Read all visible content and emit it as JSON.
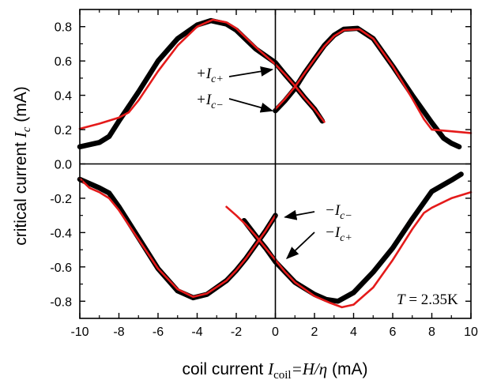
{
  "chart_data": {
    "type": "scatter",
    "xlabel": "coil current I_coil=H/η (mA)",
    "ylabel": "critical current I_c (mA)",
    "xlim": [
      -10,
      10
    ],
    "ylim": [
      -0.9,
      0.9
    ],
    "x_ticks": [
      -10,
      -8,
      -6,
      -4,
      -2,
      0,
      2,
      4,
      6,
      8,
      10
    ],
    "y_ticks": [
      -0.8,
      -0.6,
      -0.4,
      -0.2,
      0.0,
      0.2,
      0.4,
      0.6,
      0.8
    ],
    "x_tick_labels": [
      "-10",
      "-8",
      "-6",
      "-4",
      "-2",
      "0",
      "2",
      "4",
      "6",
      "8",
      "10"
    ],
    "y_tick_labels": [
      "-0.8",
      "-0.6",
      "-0.4",
      "-0.2",
      "0.0",
      "0.2",
      "0.4",
      "0.6",
      "0.8"
    ],
    "grid": false,
    "reference_lines": {
      "x": 0,
      "y": 0
    },
    "series": [
      {
        "color": "#000000",
        "style": "thick-points",
        "points": [
          [
            -10,
            0.1
          ],
          [
            -9,
            0.125
          ],
          [
            -8.5,
            0.16
          ],
          [
            -8,
            0.25
          ],
          [
            -7,
            0.42
          ],
          [
            -6,
            0.6
          ],
          [
            -5,
            0.73
          ],
          [
            -4,
            0.81
          ],
          [
            -3.3,
            0.835
          ],
          [
            -2.5,
            0.815
          ],
          [
            -2,
            0.78
          ],
          [
            -1,
            0.67
          ],
          [
            0,
            0.59
          ],
          [
            0.5,
            0.52
          ],
          [
            1,
            0.455
          ],
          [
            1.5,
            0.385
          ],
          [
            2,
            0.32
          ],
          [
            2.4,
            0.25
          ]
        ]
      },
      {
        "color": "#000000",
        "style": "thick-points",
        "points": [
          [
            0,
            0.31
          ],
          [
            0.5,
            0.37
          ],
          [
            1,
            0.44
          ],
          [
            1.5,
            0.53
          ],
          [
            2,
            0.61
          ],
          [
            2.5,
            0.69
          ],
          [
            3,
            0.75
          ],
          [
            3.5,
            0.785
          ],
          [
            4.2,
            0.79
          ],
          [
            5,
            0.73
          ],
          [
            6,
            0.57
          ],
          [
            7,
            0.4
          ],
          [
            8,
            0.24
          ],
          [
            8.6,
            0.15
          ],
          [
            9,
            0.12
          ],
          [
            9.4,
            0.1
          ]
        ]
      },
      {
        "color": "#000000",
        "style": "thick-points",
        "points": [
          [
            -10,
            -0.09
          ],
          [
            -9,
            -0.14
          ],
          [
            -8.5,
            -0.17
          ],
          [
            -8,
            -0.25
          ],
          [
            -7,
            -0.43
          ],
          [
            -6,
            -0.61
          ],
          [
            -5,
            -0.74
          ],
          [
            -4.2,
            -0.78
          ],
          [
            -3.5,
            -0.76
          ],
          [
            -2.5,
            -0.68
          ],
          [
            -2,
            -0.62
          ],
          [
            -1.5,
            -0.55
          ],
          [
            -1,
            -0.47
          ],
          [
            -0.5,
            -0.39
          ],
          [
            0,
            -0.3
          ]
        ]
      },
      {
        "color": "#000000",
        "style": "thick-points",
        "points": [
          [
            -1.6,
            -0.33
          ],
          [
            -1,
            -0.42
          ],
          [
            -0.5,
            -0.49
          ],
          [
            0,
            -0.57
          ],
          [
            0.5,
            -0.63
          ],
          [
            1,
            -0.69
          ],
          [
            2,
            -0.76
          ],
          [
            2.6,
            -0.79
          ],
          [
            3.2,
            -0.8
          ],
          [
            4,
            -0.75
          ],
          [
            5,
            -0.63
          ],
          [
            6,
            -0.49
          ],
          [
            7,
            -0.32
          ],
          [
            8,
            -0.16
          ],
          [
            9,
            -0.095
          ],
          [
            9.5,
            -0.06
          ]
        ]
      },
      {
        "color": "#e41a1a",
        "style": "line",
        "points": [
          [
            -10,
            0.205
          ],
          [
            -9,
            0.235
          ],
          [
            -8,
            0.27
          ],
          [
            -7.5,
            0.3
          ],
          [
            -7,
            0.37
          ],
          [
            -6,
            0.54
          ],
          [
            -5,
            0.69
          ],
          [
            -4,
            0.8
          ],
          [
            -3.2,
            0.84
          ],
          [
            -2.5,
            0.825
          ],
          [
            -2,
            0.79
          ],
          [
            -1,
            0.68
          ],
          [
            0,
            0.58
          ],
          [
            0.5,
            0.52
          ],
          [
            1,
            0.455
          ],
          [
            1.5,
            0.385
          ],
          [
            2,
            0.32
          ],
          [
            2.5,
            0.245
          ]
        ]
      },
      {
        "color": "#e41a1a",
        "style": "line",
        "points": [
          [
            0,
            0.32
          ],
          [
            0.5,
            0.38
          ],
          [
            1,
            0.45
          ],
          [
            1.5,
            0.53
          ],
          [
            2,
            0.61
          ],
          [
            2.5,
            0.685
          ],
          [
            3,
            0.745
          ],
          [
            3.5,
            0.78
          ],
          [
            4.3,
            0.785
          ],
          [
            5,
            0.73
          ],
          [
            6,
            0.57
          ],
          [
            7,
            0.38
          ],
          [
            7.6,
            0.26
          ],
          [
            8,
            0.2
          ],
          [
            9,
            0.19
          ],
          [
            10,
            0.18
          ]
        ]
      },
      {
        "color": "#e41a1a",
        "style": "line",
        "points": [
          [
            -10,
            -0.085
          ],
          [
            -9.5,
            -0.14
          ],
          [
            -9,
            -0.165
          ],
          [
            -8.5,
            -0.2
          ],
          [
            -8,
            -0.27
          ],
          [
            -7,
            -0.44
          ],
          [
            -6,
            -0.61
          ],
          [
            -5,
            -0.73
          ],
          [
            -4.2,
            -0.775
          ],
          [
            -3.5,
            -0.755
          ],
          [
            -2.5,
            -0.68
          ],
          [
            -2,
            -0.62
          ],
          [
            -1.5,
            -0.55
          ],
          [
            -1,
            -0.47
          ],
          [
            -0.5,
            -0.39
          ],
          [
            0,
            -0.3
          ]
        ]
      },
      {
        "color": "#e41a1a",
        "style": "line",
        "points": [
          [
            -2.5,
            -0.25
          ],
          [
            -2,
            -0.3
          ],
          [
            -1.5,
            -0.355
          ],
          [
            -1,
            -0.42
          ],
          [
            -0.5,
            -0.49
          ],
          [
            0,
            -0.56
          ],
          [
            0.5,
            -0.63
          ],
          [
            1,
            -0.69
          ],
          [
            2,
            -0.77
          ],
          [
            2.8,
            -0.81
          ],
          [
            3.4,
            -0.835
          ],
          [
            4,
            -0.82
          ],
          [
            5,
            -0.72
          ],
          [
            6,
            -0.56
          ],
          [
            7,
            -0.38
          ],
          [
            7.6,
            -0.285
          ],
          [
            8,
            -0.255
          ],
          [
            9,
            -0.2
          ],
          [
            10,
            -0.165
          ]
        ]
      }
    ],
    "annotations": [
      {
        "text_main": "+I",
        "text_sub": "c+",
        "target": [
          0,
          0.55
        ]
      },
      {
        "text_main": "+I",
        "text_sub": "c−",
        "target": [
          0,
          0.31
        ]
      },
      {
        "text_main": "−I",
        "text_sub": "c−",
        "target": [
          0.25,
          -0.31
        ]
      },
      {
        "text_main": "−I",
        "text_sub": "c+",
        "target": [
          0.35,
          -0.55
        ]
      }
    ],
    "temperature_label": {
      "symbol": "T",
      "value": " = 2.35K"
    }
  }
}
